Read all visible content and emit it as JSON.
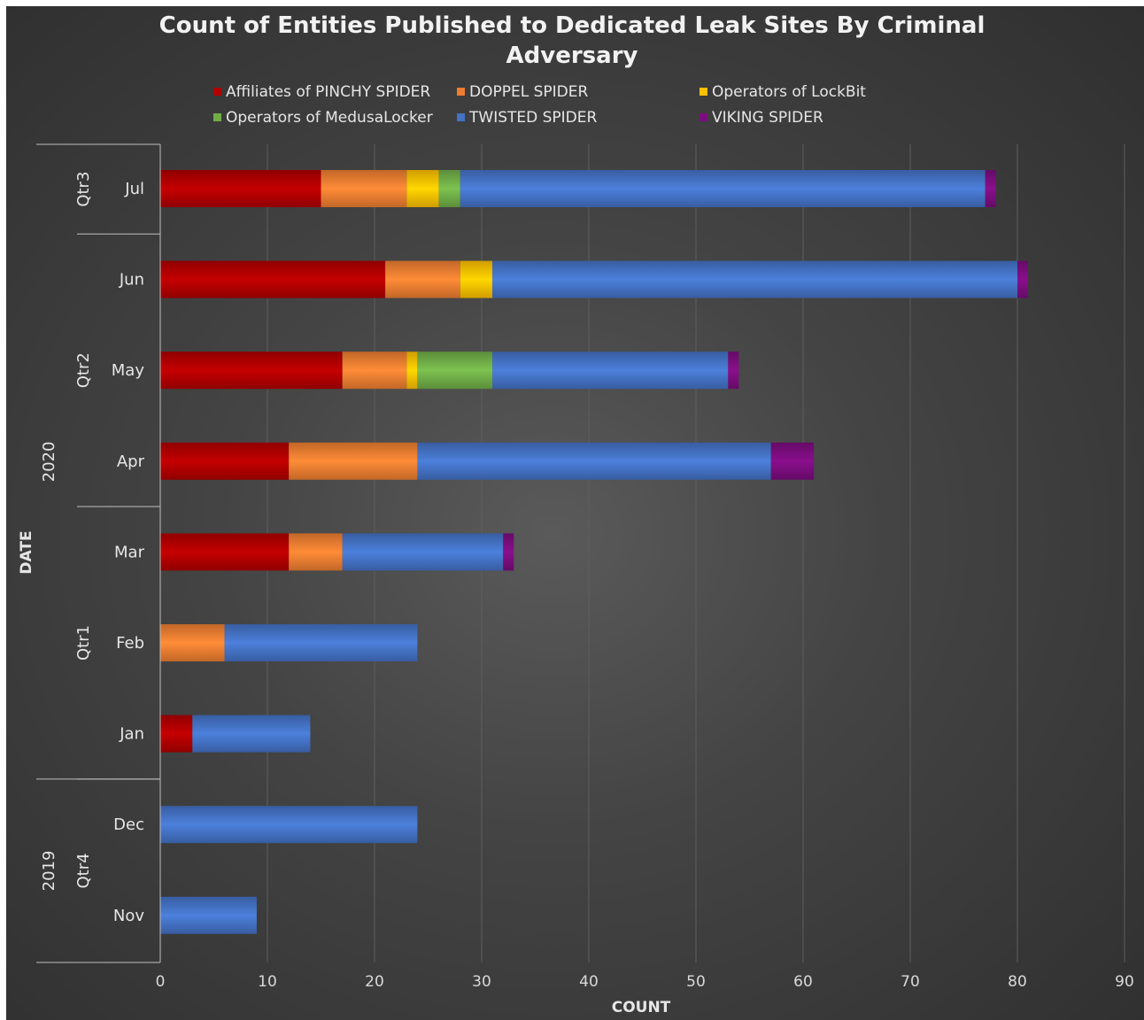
{
  "chart_data": {
    "type": "bar",
    "orientation": "horizontal",
    "stacked": true,
    "title": "Count of Entities Published to Dedicated Leak Sites By Criminal Adversary",
    "title_lines": [
      "Count of Entities Published to Dedicated Leak Sites By Criminal",
      "Adversary"
    ],
    "xlabel": "COUNT",
    "ylabel": "DATE",
    "xlim": [
      0,
      90
    ],
    "xticks": [
      0,
      10,
      20,
      30,
      40,
      50,
      60,
      70,
      80,
      90
    ],
    "grid": "vertical",
    "legend_position": "top",
    "categories": [
      "Jul",
      "Jun",
      "May",
      "Apr",
      "Mar",
      "Feb",
      "Jan",
      "Dec",
      "Nov"
    ],
    "quarter_groups": [
      {
        "label": "Qtr3",
        "months": [
          "Jul"
        ]
      },
      {
        "label": "Qtr2",
        "months": [
          "Jun",
          "May",
          "Apr"
        ]
      },
      {
        "label": "Qtr1",
        "months": [
          "Mar",
          "Feb",
          "Jan"
        ]
      },
      {
        "label": "Qtr4",
        "months": [
          "Dec",
          "Nov"
        ]
      }
    ],
    "year_groups": [
      {
        "label": "2020",
        "months": [
          "Jul",
          "Jun",
          "May",
          "Apr",
          "Mar",
          "Feb",
          "Jan"
        ]
      },
      {
        "label": "2019",
        "months": [
          "Dec",
          "Nov"
        ]
      }
    ],
    "series": [
      {
        "name": "Affiliates of PINCHY SPIDER",
        "color": "#b00000",
        "values": [
          15,
          21,
          17,
          12,
          12,
          0,
          3,
          0,
          0
        ]
      },
      {
        "name": "DOPPEL SPIDER",
        "color": "#ed7d31",
        "values": [
          8,
          7,
          6,
          12,
          5,
          6,
          0,
          0,
          0
        ]
      },
      {
        "name": "Operators of LockBit",
        "color": "#ffc000",
        "values": [
          3,
          3,
          1,
          0,
          0,
          0,
          0,
          0,
          0
        ]
      },
      {
        "name": "Operators of MedusaLocker",
        "color": "#70ad47",
        "values": [
          2,
          0,
          7,
          0,
          0,
          0,
          0,
          0,
          0
        ]
      },
      {
        "name": "TWISTED SPIDER",
        "color": "#4472c4",
        "values": [
          49,
          49,
          22,
          33,
          15,
          18,
          11,
          24,
          9
        ]
      },
      {
        "name": "VIKING SPIDER",
        "color": "#7b0d7e",
        "values": [
          1,
          1,
          1,
          4,
          1,
          0,
          0,
          0,
          0
        ]
      }
    ]
  }
}
